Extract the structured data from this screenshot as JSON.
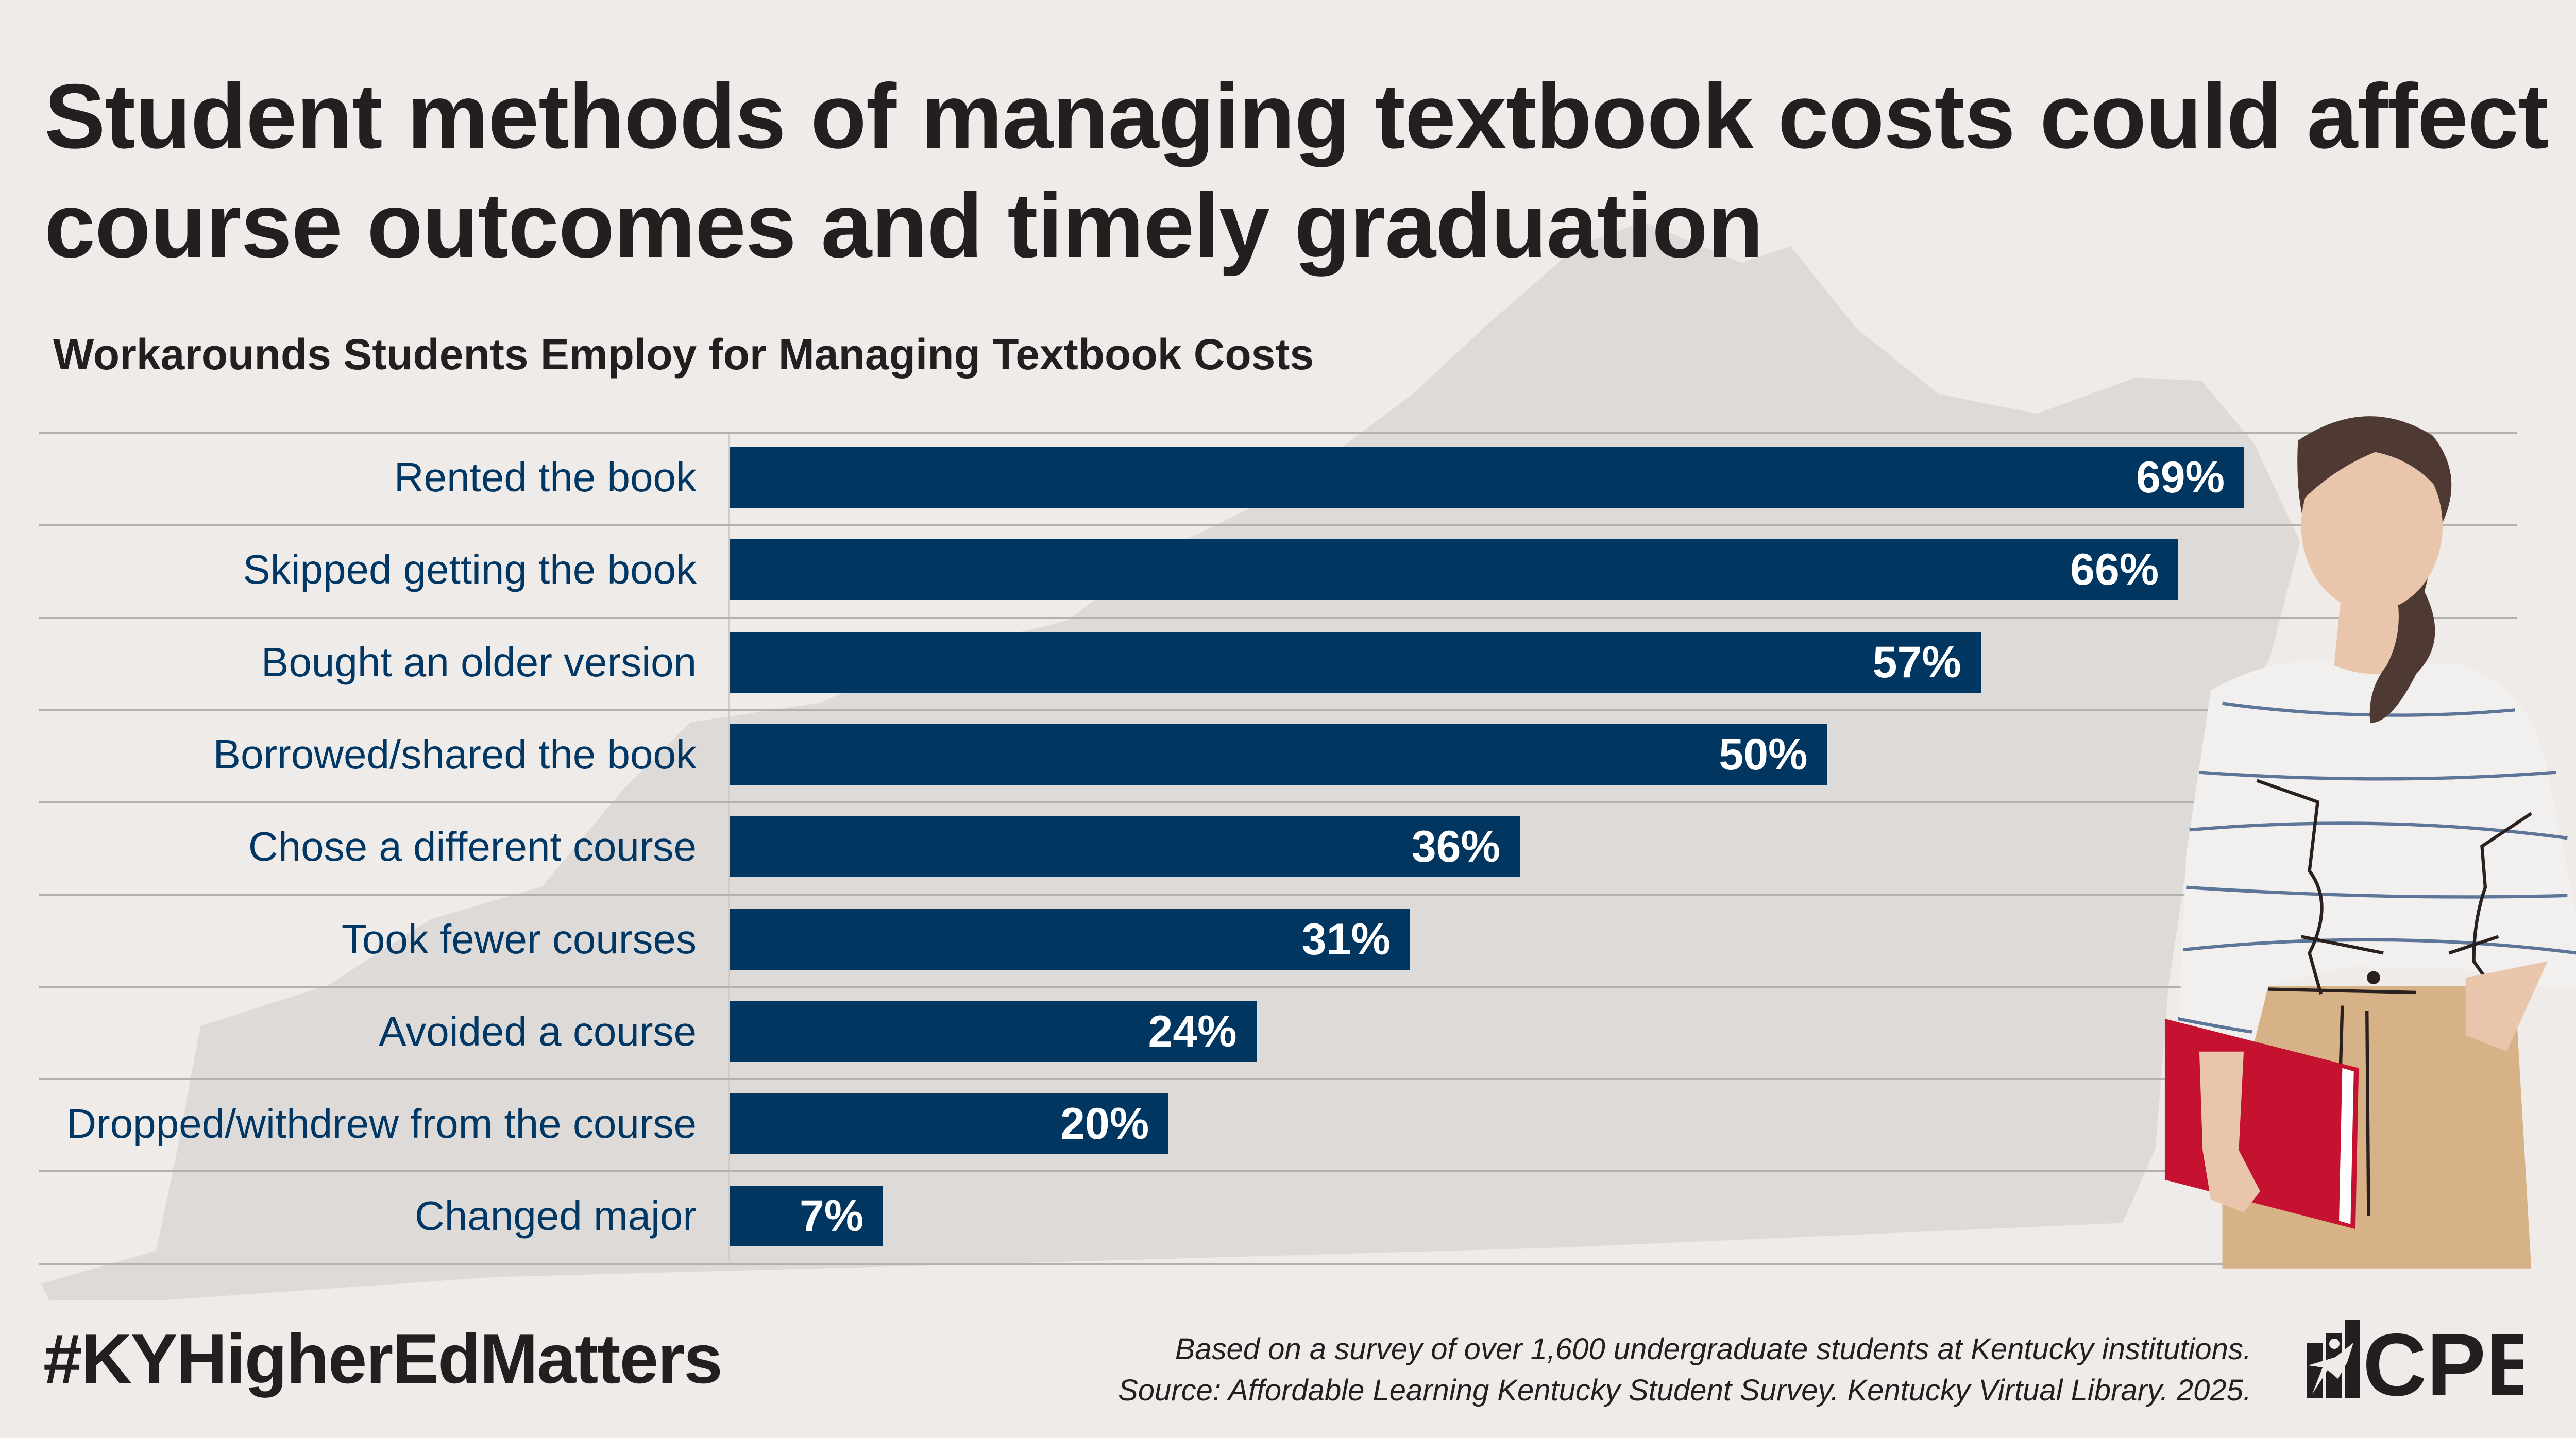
{
  "title_lines": [
    "Student methods of managing textbook costs could affect",
    "course outcomes and timely graduation"
  ],
  "hashtag": "#KYHigherEdMatters",
  "footnote_lines": [
    "Based on a survey of over 1,600 undergraduate students at Kentucky institutions.",
    "Source: Affordable Learning Kentucky Student Survey. Kentucky Virtual Library. 2025."
  ],
  "logo_text": "CPE",
  "colors": {
    "bar": "#003660",
    "label": "#003764",
    "background": "#efebe8",
    "map": "#dedad7"
  },
  "chart_data": {
    "type": "bar",
    "orientation": "horizontal",
    "title": "Workarounds Students Employ for Managing Textbook Costs",
    "xlabel": "",
    "ylabel": "",
    "xlim": [
      0,
      100
    ],
    "unit": "%",
    "categories": [
      "Rented the book",
      "Skipped getting the book",
      "Bought an older version",
      "Borrowed/shared the book",
      "Chose a different course",
      "Took fewer courses",
      "Avoided a course",
      "Dropped/withdrew from the course",
      "Changed major"
    ],
    "values": [
      69,
      66,
      57,
      50,
      36,
      31,
      24,
      20,
      7
    ],
    "value_labels": [
      "69%",
      "66%",
      "57%",
      "50%",
      "36%",
      "31%",
      "24%",
      "20%",
      "7%"
    ],
    "grid": false
  }
}
